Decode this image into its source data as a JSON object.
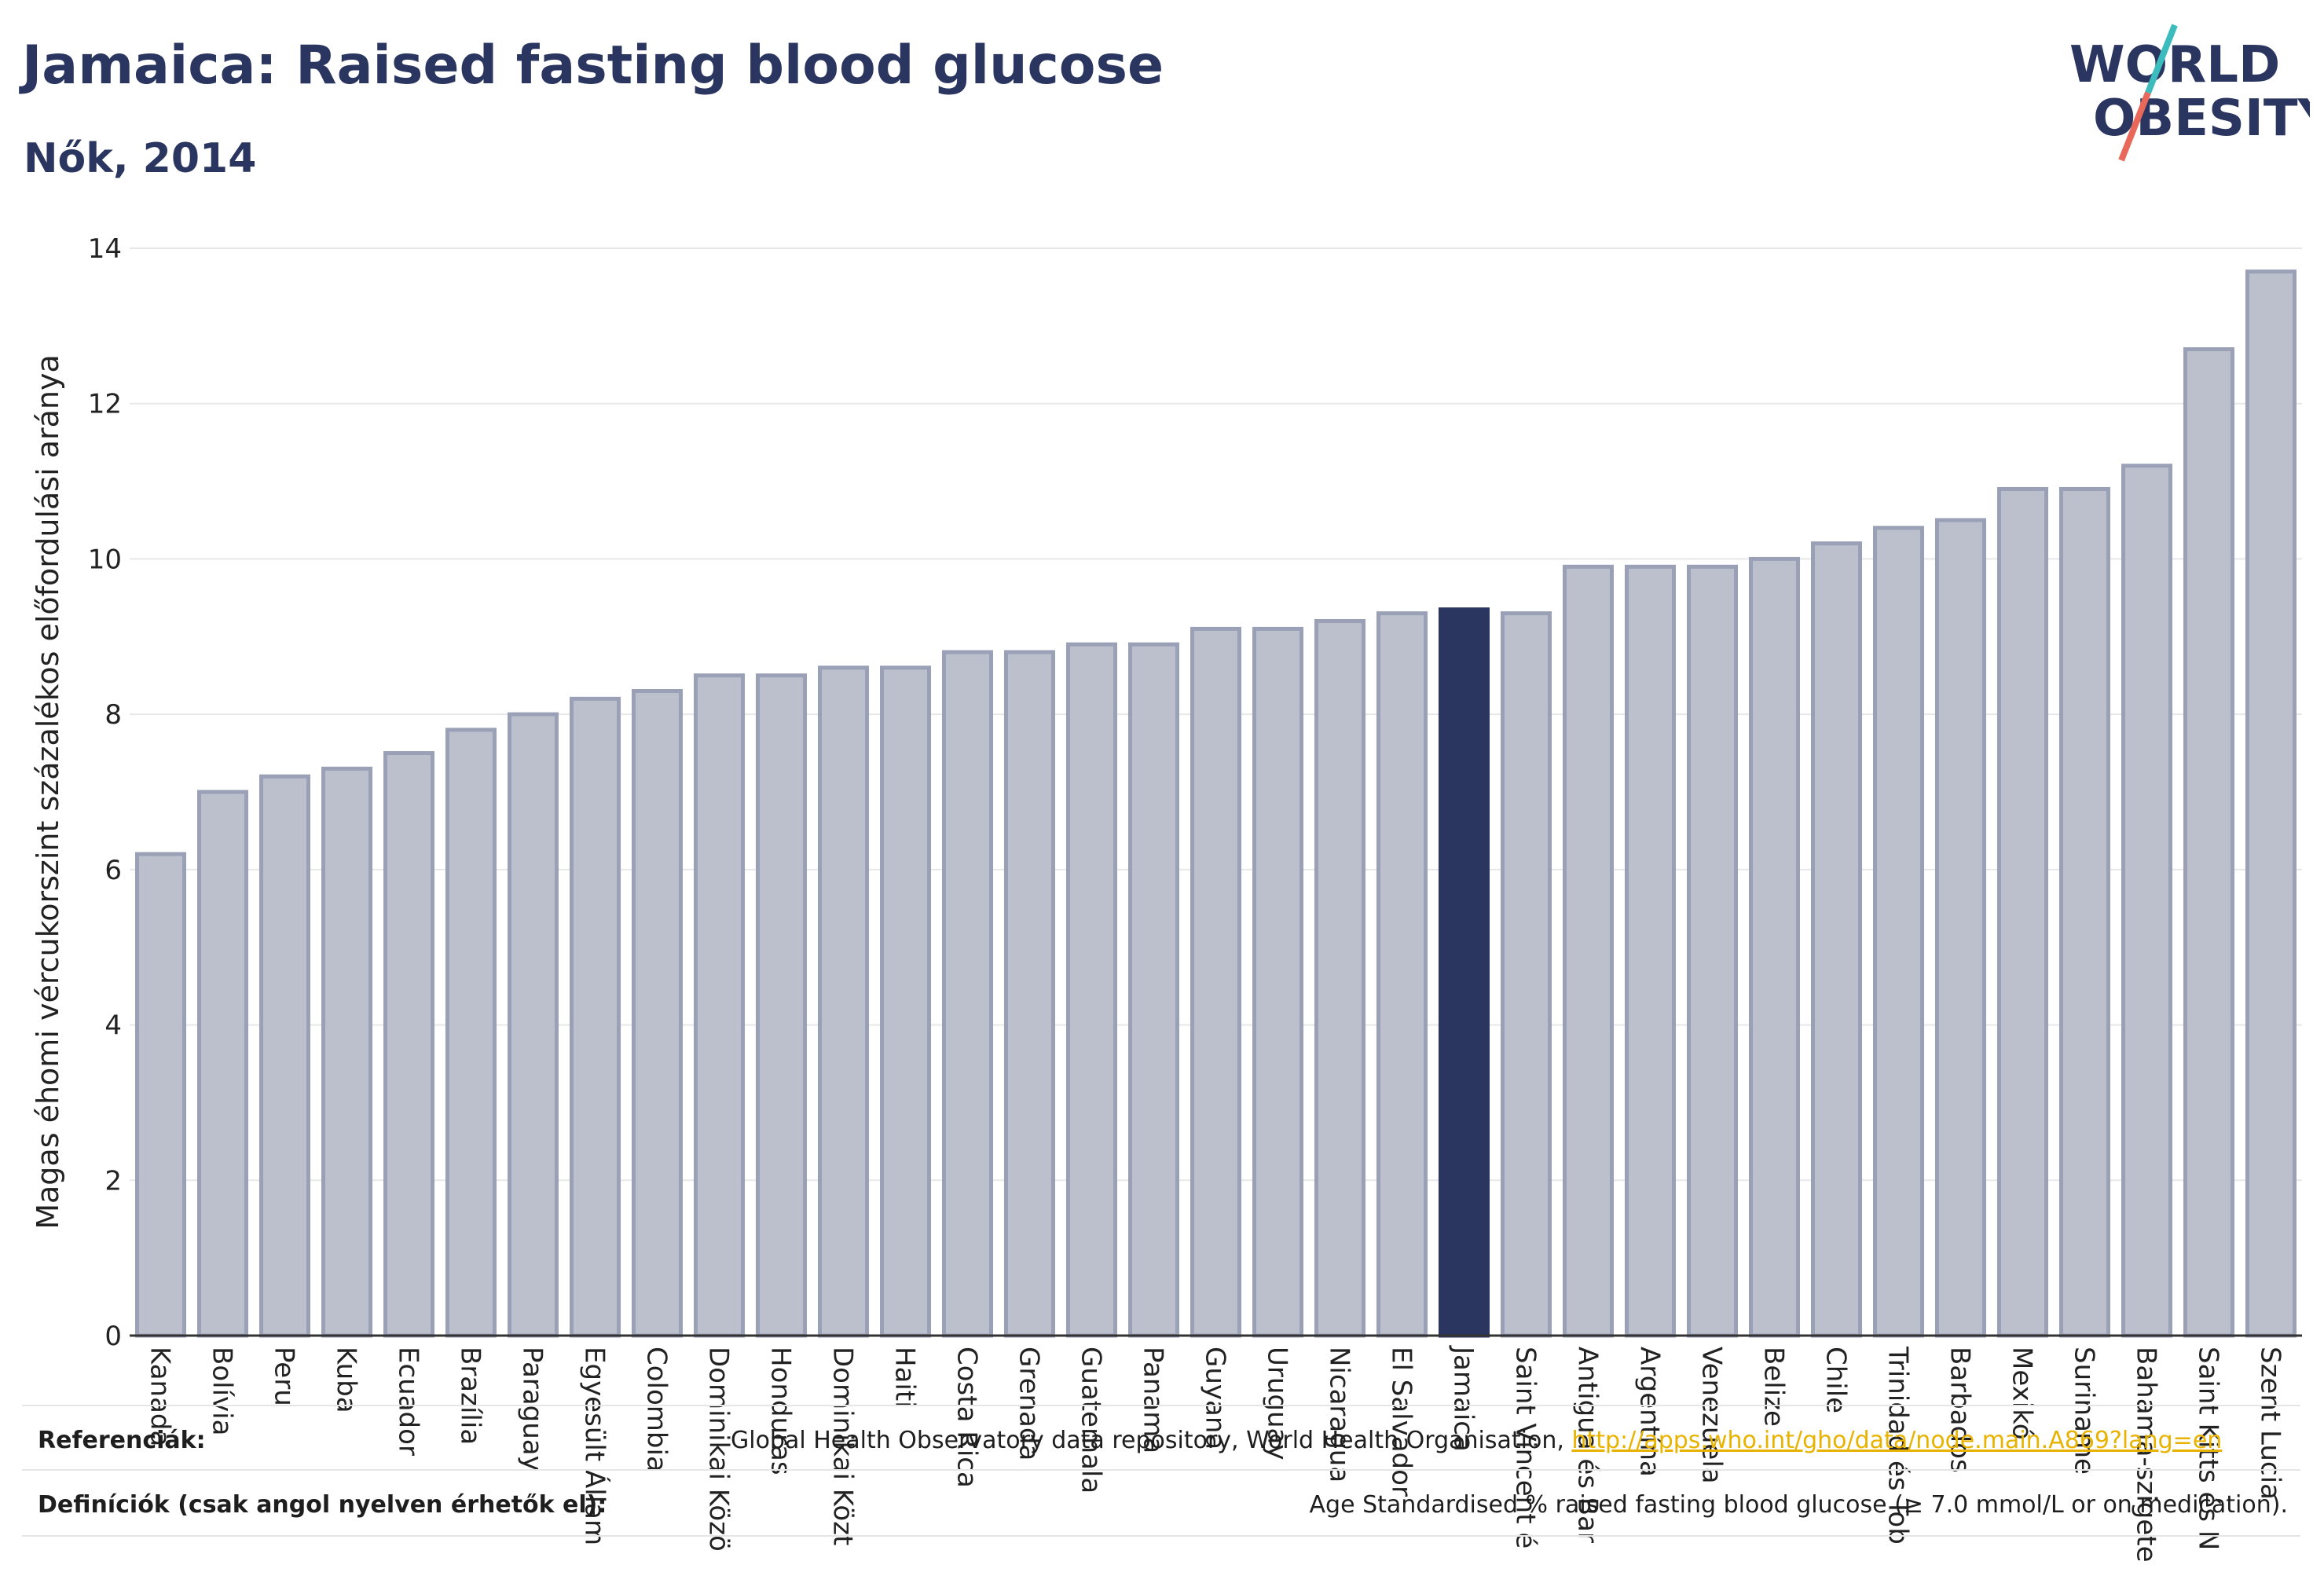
{
  "title": "Jamaica: Raised fasting blood glucose",
  "subtitle": "Nők, 2014",
  "logo": {
    "line1": "WORLD",
    "line2": "OBESITY",
    "text_color": "#2b3660",
    "slash_colors": [
      "#3cbcbc",
      "#e8685a"
    ]
  },
  "colors": {
    "bar": "#bcc0cd",
    "bar_stroke": "#9aa0b6",
    "highlight": "#2b3660",
    "grid": "#e8e8e8",
    "axis": "#333333"
  },
  "chart_data": {
    "type": "bar",
    "title": "Jamaica: Raised fasting blood glucose",
    "subtitle": "Nők, 2014",
    "xlabel": "",
    "ylabel": "Magas éhomi vércukorszint százalékos előfordulási aránya",
    "ylim": [
      0,
      14
    ],
    "yticks": [
      0,
      2,
      4,
      6,
      8,
      10,
      12,
      14
    ],
    "grid": true,
    "highlight": "Jamaica",
    "categories": [
      "Kanada",
      "Bolívia",
      "Peru",
      "Kuba",
      "Ecuador",
      "Brazília",
      "Paraguay",
      "Egyesült Állam",
      "Colombia",
      "Dominikai Közö",
      "Honduras",
      "Dominikai Közt",
      "Haiti",
      "Costa Rica",
      "Grenada",
      "Guatemala",
      "Panama",
      "Guyana",
      "Uruguay",
      "Nicaragua",
      "El Salvador",
      "Jamaica",
      "Saint Vincent é",
      "Antigua és Bar",
      "Argentína",
      "Venezuela",
      "Belize",
      "Chile",
      "Trinidad és Tob",
      "Barbados",
      "Mexikó",
      "Suriname",
      "Bahama-szigete",
      "Saint Kitts és N",
      "Szent Lucia"
    ],
    "values": [
      6.2,
      7.0,
      7.2,
      7.3,
      7.5,
      7.8,
      8.0,
      8.2,
      8.3,
      8.5,
      8.5,
      8.6,
      8.6,
      8.8,
      8.8,
      8.9,
      8.9,
      9.1,
      9.1,
      9.2,
      9.3,
      9.35,
      9.3,
      9.9,
      9.9,
      9.9,
      10.0,
      10.2,
      10.4,
      10.5,
      10.9,
      10.9,
      11.2,
      12.7,
      13.7
    ]
  },
  "footer": {
    "ref_label": "Referenciák:",
    "ref_text": "Global Health Observatory data repository, World Health Organisation,",
    "ref_link": "http://apps.who.int/gho/data/node.main.A869?lang=en",
    "def_label": "Definíciók (csak angol nyelven érhetők el):",
    "def_text": "Age Standardised % raised fasting blood glucose (≥ 7.0 mmol/L or on medication)."
  }
}
